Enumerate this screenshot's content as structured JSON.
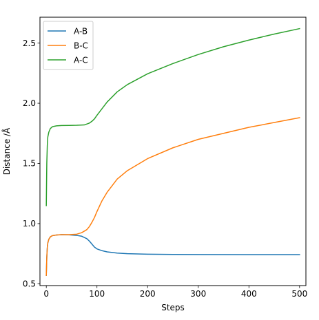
{
  "chart_data": {
    "type": "line",
    "title": "",
    "xlabel": "Steps",
    "ylabel": "Distance /Å",
    "xlim": [
      -12.5,
      512.5
    ],
    "ylim": [
      0.485,
      2.715
    ],
    "xticks": [
      0,
      100,
      200,
      300,
      400,
      500
    ],
    "yticks": [
      0.5,
      1.0,
      1.5,
      2.0,
      2.5
    ],
    "xtick_labels": [
      "0",
      "100",
      "200",
      "300",
      "400",
      "500"
    ],
    "ytick_labels": [
      "0.5",
      "1.0",
      "1.5",
      "2.0",
      "2.5"
    ],
    "grid": false,
    "legend_position": "upper-left",
    "series": [
      {
        "name": "A-B",
        "color": "#1f77b4",
        "x": [
          0,
          1,
          2,
          3,
          5,
          8,
          12,
          20,
          30,
          45,
          60,
          70,
          80,
          85,
          90,
          95,
          100,
          110,
          120,
          140,
          160,
          200,
          250,
          300,
          400,
          500
        ],
        "y": [
          0.57,
          0.72,
          0.8,
          0.84,
          0.87,
          0.89,
          0.9,
          0.905,
          0.908,
          0.907,
          0.902,
          0.895,
          0.875,
          0.855,
          0.83,
          0.805,
          0.79,
          0.775,
          0.765,
          0.755,
          0.75,
          0.746,
          0.744,
          0.743,
          0.742,
          0.742
        ]
      },
      {
        "name": "B-C",
        "color": "#ff7f0e",
        "x": [
          0,
          1,
          2,
          3,
          5,
          8,
          12,
          20,
          30,
          45,
          60,
          70,
          80,
          85,
          90,
          95,
          100,
          110,
          120,
          140,
          160,
          200,
          250,
          300,
          350,
          400,
          450,
          500
        ],
        "y": [
          0.57,
          0.72,
          0.8,
          0.84,
          0.87,
          0.89,
          0.9,
          0.905,
          0.908,
          0.908,
          0.912,
          0.925,
          0.95,
          0.975,
          1.01,
          1.05,
          1.1,
          1.19,
          1.26,
          1.37,
          1.44,
          1.54,
          1.63,
          1.7,
          1.75,
          1.8,
          1.84,
          1.88
        ]
      },
      {
        "name": "A-C",
        "color": "#2ca02c",
        "x": [
          0,
          1,
          2,
          3,
          5,
          8,
          12,
          20,
          30,
          45,
          60,
          75,
          85,
          90,
          95,
          100,
          110,
          120,
          140,
          160,
          200,
          250,
          300,
          350,
          400,
          450,
          500
        ],
        "y": [
          1.15,
          1.5,
          1.65,
          1.72,
          1.76,
          1.79,
          1.805,
          1.812,
          1.815,
          1.816,
          1.817,
          1.82,
          1.835,
          1.85,
          1.87,
          1.9,
          1.955,
          2.01,
          2.095,
          2.155,
          2.245,
          2.33,
          2.405,
          2.47,
          2.525,
          2.575,
          2.62
        ]
      }
    ]
  }
}
